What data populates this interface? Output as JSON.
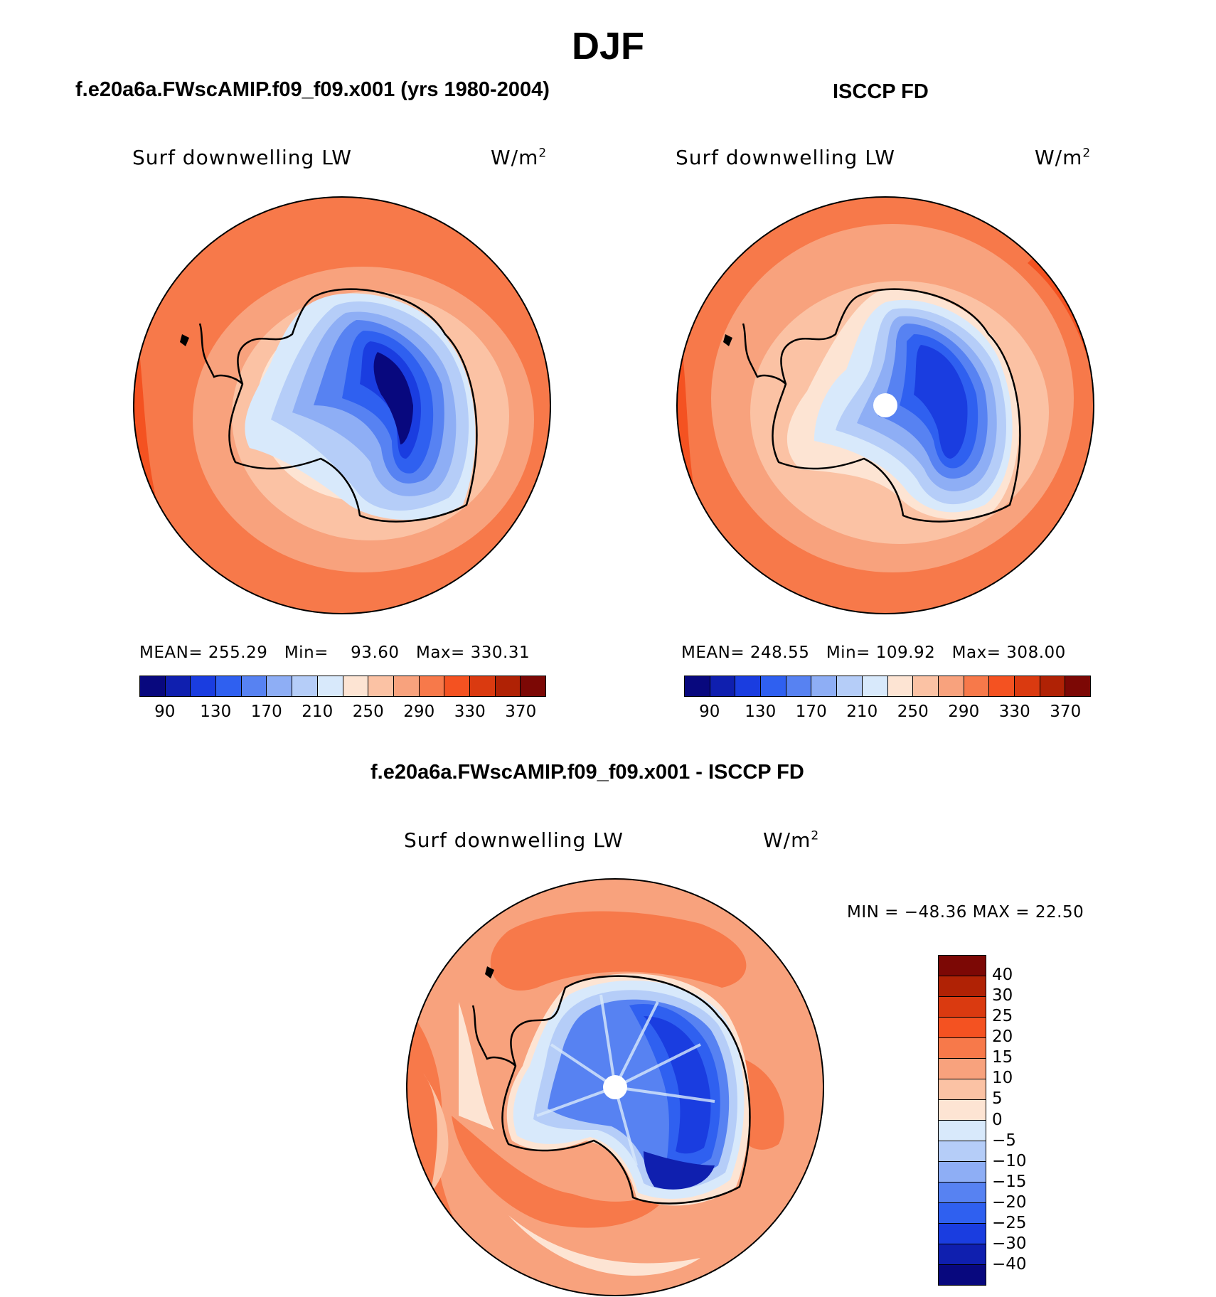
{
  "title": "DJF",
  "panels": {
    "model": {
      "title": "f.e20a6a.FWscAMIP.f09_f09.x001 (yrs 1980-2004)",
      "label": "Surf  downwelling  LW",
      "units_base": "W/m",
      "units_exp": "2",
      "stats": {
        "mean_label": "MEAN=",
        "mean": "255.29",
        "min_label": "Min=",
        "min": "93.60",
        "max_label": "Max=",
        "max": "330.31"
      }
    },
    "obs": {
      "title": "ISCCP FD",
      "label": "Surf  downwelling  LW",
      "units_base": "W/m",
      "units_exp": "2",
      "stats": {
        "mean_label": "MEAN=",
        "mean": "248.55",
        "min_label": "Min=",
        "min": "109.92",
        "max_label": "Max=",
        "max": "308.00"
      }
    },
    "diff": {
      "title": "f.e20a6a.FWscAMIP.f09_f09.x001 - ISCCP FD",
      "label": "Surf  downwelling  LW",
      "units_base": "W/m",
      "units_exp": "2",
      "minmax": "MIN  =  −48.36  MAX  =    22.50"
    }
  },
  "colorbar_abs": {
    "colors": [
      "#08087e",
      "#0f1faf",
      "#1a3de0",
      "#2f60f0",
      "#5782f2",
      "#8eaef5",
      "#b5cdf8",
      "#d8e9fb",
      "#fde4d3",
      "#fbc2a4",
      "#f8a27d",
      "#f7794a",
      "#f45221",
      "#da3a10",
      "#b02205",
      "#7c0805"
    ],
    "tick_labels": [
      "90",
      "130",
      "170",
      "210",
      "250",
      "290",
      "330",
      "370"
    ]
  },
  "colorbar_diff": {
    "colors": [
      "#7c0805",
      "#b02205",
      "#da3a10",
      "#f45221",
      "#f7794a",
      "#f8a27d",
      "#fbc2a4",
      "#fde4d3",
      "#d8e9fb",
      "#b5cdf8",
      "#8eaef5",
      "#5782f2",
      "#2f60f0",
      "#1a3de0",
      "#0f1faf",
      "#08087e"
    ],
    "tick_labels": [
      "40",
      "30",
      "25",
      "20",
      "15",
      "10",
      "5",
      "0",
      "−5",
      "−10",
      "−15",
      "−20",
      "−25",
      "−30",
      "−40"
    ]
  }
}
